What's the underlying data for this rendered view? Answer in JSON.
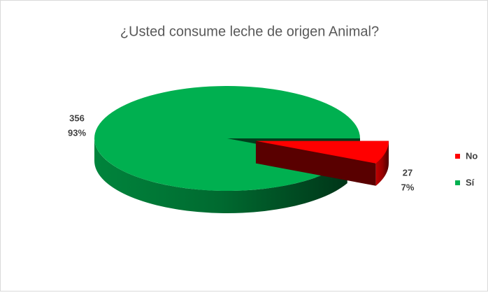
{
  "chart_data": {
    "type": "pie",
    "title": "¿Usted consume leche de origen Animal?",
    "categories": [
      "No",
      "Sí"
    ],
    "values": [
      27,
      356
    ],
    "percentages": [
      7,
      93
    ],
    "percentage_labels": [
      "7%",
      "93%"
    ],
    "colors": [
      "#ff0000",
      "#00b050"
    ],
    "legend": "right"
  }
}
